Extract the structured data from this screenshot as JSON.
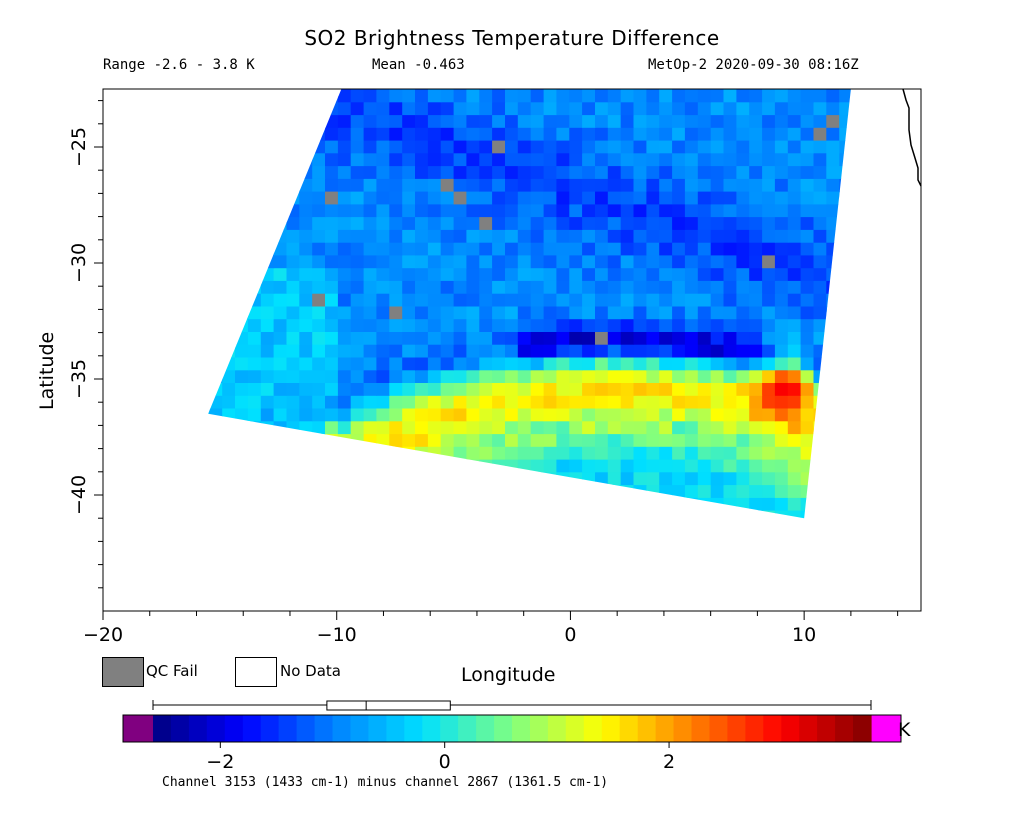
{
  "chart_data": {
    "type": "heatmap",
    "title": "SO2 Brightness Temperature Difference",
    "range_text": "Range -2.6 - 3.8 K",
    "mean_text": "Mean -0.463",
    "satellite_text": "MetOp-2 2020-09-30 08:16Z",
    "xlabel": "Longitude",
    "ylabel": "Latitude",
    "xlim": [
      -20,
      15
    ],
    "ylim": [
      -45,
      -22.5
    ],
    "x_ticks": [
      -20,
      -10,
      0,
      10
    ],
    "y_ticks": [
      -25,
      -30,
      -35,
      -40
    ],
    "x_tick_labels": [
      "−20",
      "−10",
      "0",
      "10"
    ],
    "y_tick_labels": [
      "−25",
      "−30",
      "−35",
      "−40"
    ],
    "swath": {
      "corners_lon_lat": [
        [
          -9.8,
          -22.5
        ],
        [
          12.0,
          -22.5
        ],
        [
          10.0,
          -41.0
        ],
        [
          -15.5,
          -36.5
        ]
      ],
      "description_only_for_script": "tilted scan swath"
    },
    "features": {
      "warm_arc_peak_value": 3.8,
      "warm_arc_center_lon_lat": [
        9.5,
        -35.0
      ],
      "cold_band_value": -2.6
    },
    "legend": {
      "qc_fail_label": "QC Fail",
      "no_data_label": "No Data",
      "qc_fail_color": "#808080",
      "no_data_color": "#ffffff"
    },
    "colorbar": {
      "vmin": -2.6,
      "vmax": 3.8,
      "ticks": [
        -2,
        0,
        2
      ],
      "tick_labels": [
        "−2",
        "0",
        "2"
      ],
      "unit": "K",
      "under_color": "#800080",
      "over_color": "#ff00ff",
      "colors": [
        "#000080",
        "#0000ff",
        "#0080ff",
        "#00e0ff",
        "#80ff80",
        "#ffff00",
        "#ff8000",
        "#ff0000",
        "#800000"
      ]
    },
    "boxplot": {
      "whisker_low": -2.6,
      "q1": -1.05,
      "median": -0.7,
      "q3": 0.05,
      "whisker_high": 3.8
    },
    "caption": "Channel 3153 (1433 cm-1) minus channel 2867 (1361.5 cm-1)"
  }
}
